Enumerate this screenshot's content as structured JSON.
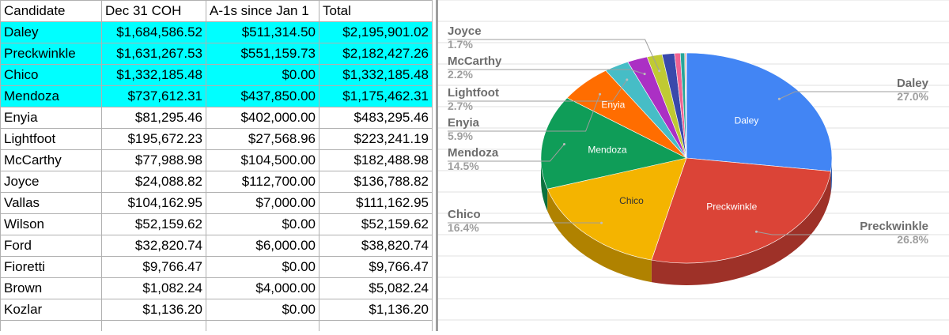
{
  "table": {
    "headers": [
      "Candidate",
      "Dec 31 COH",
      "A-1s since Jan 1",
      "Total"
    ],
    "rows": [
      [
        "Daley",
        "$1,684,586.52",
        "$511,314.50",
        "$2,195,901.02"
      ],
      [
        "Preckwinkle",
        "$1,631,267.53",
        "$551,159.73",
        "$2,182,427.26"
      ],
      [
        "Chico",
        "$1,332,185.48",
        "$0.00",
        "$1,332,185.48"
      ],
      [
        "Mendoza",
        "$737,612.31",
        "$437,850.00",
        "$1,175,462.31"
      ],
      [
        "Enyia",
        "$81,295.46",
        "$402,000.00",
        "$483,295.46"
      ],
      [
        "Lightfoot",
        "$195,672.23",
        "$27,568.96",
        "$223,241.19"
      ],
      [
        "McCarthy",
        "$77,988.98",
        "$104,500.00",
        "$182,488.98"
      ],
      [
        "Joyce",
        "$24,088.82",
        "$112,700.00",
        "$136,788.82"
      ],
      [
        "Vallas",
        "$104,162.95",
        "$7,000.00",
        "$111,162.95"
      ],
      [
        "Wilson",
        "$52,159.62",
        "$0.00",
        "$52,159.62"
      ],
      [
        "Ford",
        "$32,820.74",
        "$6,000.00",
        "$38,820.74"
      ],
      [
        "Fioretti",
        "$9,766.47",
        "$0.00",
        "$9,766.47"
      ],
      [
        "Brown",
        "$1,082.24",
        "$4,000.00",
        "$5,082.24"
      ],
      [
        "Kozlar",
        "$1,136.20",
        "$0.00",
        "$1,136.20"
      ]
    ],
    "highlight_color": "#00ffff",
    "highlighted_rows": 4
  },
  "chart_data": {
    "type": "pie",
    "style": "3d",
    "title": "",
    "slices": [
      {
        "label": "Daley",
        "value": 2195901.02,
        "percent": "27.0%",
        "color": "#4285f4",
        "inner_label": "Daley",
        "outer_label": true
      },
      {
        "label": "Preckwinkle",
        "value": 2182427.26,
        "percent": "26.8%",
        "color": "#db4437",
        "inner_label": "Preckwinkle",
        "outer_label": true
      },
      {
        "label": "Chico",
        "value": 1332185.48,
        "percent": "16.4%",
        "color": "#f4b400",
        "inner_label": "Chico",
        "outer_label": true
      },
      {
        "label": "Mendoza",
        "value": 1175462.31,
        "percent": "14.5%",
        "color": "#0f9d58",
        "inner_label": "Mendoza",
        "outer_label": true
      },
      {
        "label": "Enyia",
        "value": 483295.46,
        "percent": "5.9%",
        "color": "#ff6d00",
        "inner_label": "Enyia",
        "outer_label": true
      },
      {
        "label": "Lightfoot",
        "value": 223241.19,
        "percent": "2.7%",
        "color": "#46bdc6",
        "inner_label": "",
        "outer_label": true
      },
      {
        "label": "McCarthy",
        "value": 182488.98,
        "percent": "2.2%",
        "color": "#ab30c4",
        "inner_label": "",
        "outer_label": true
      },
      {
        "label": "Joyce",
        "value": 136788.82,
        "percent": "1.7%",
        "color": "#c0ca33",
        "inner_label": "",
        "outer_label": true
      },
      {
        "label": "Vallas",
        "value": 111162.95,
        "color": "#3949ab",
        "inner_label": "",
        "outer_label": false
      },
      {
        "label": "Wilson",
        "value": 52159.62,
        "color": "#f06292",
        "inner_label": "",
        "outer_label": false
      },
      {
        "label": "Ford",
        "value": 38820.74,
        "color": "#26a69a",
        "inner_label": "",
        "outer_label": false
      },
      {
        "label": "Fioretti",
        "value": 9766.47,
        "color": "#ff8a65",
        "inner_label": "",
        "outer_label": false
      },
      {
        "label": "Brown",
        "value": 5082.24,
        "color": "#9c27b0",
        "inner_label": "",
        "outer_label": false
      },
      {
        "label": "Kozlar",
        "value": 1136.2,
        "color": "#795548",
        "inner_label": "",
        "outer_label": false
      }
    ],
    "label_colors": {
      "name": "#6d6d6d",
      "percent": "#9e9e9e",
      "inner": "#ffffff",
      "inner_dark": "#333333"
    }
  }
}
